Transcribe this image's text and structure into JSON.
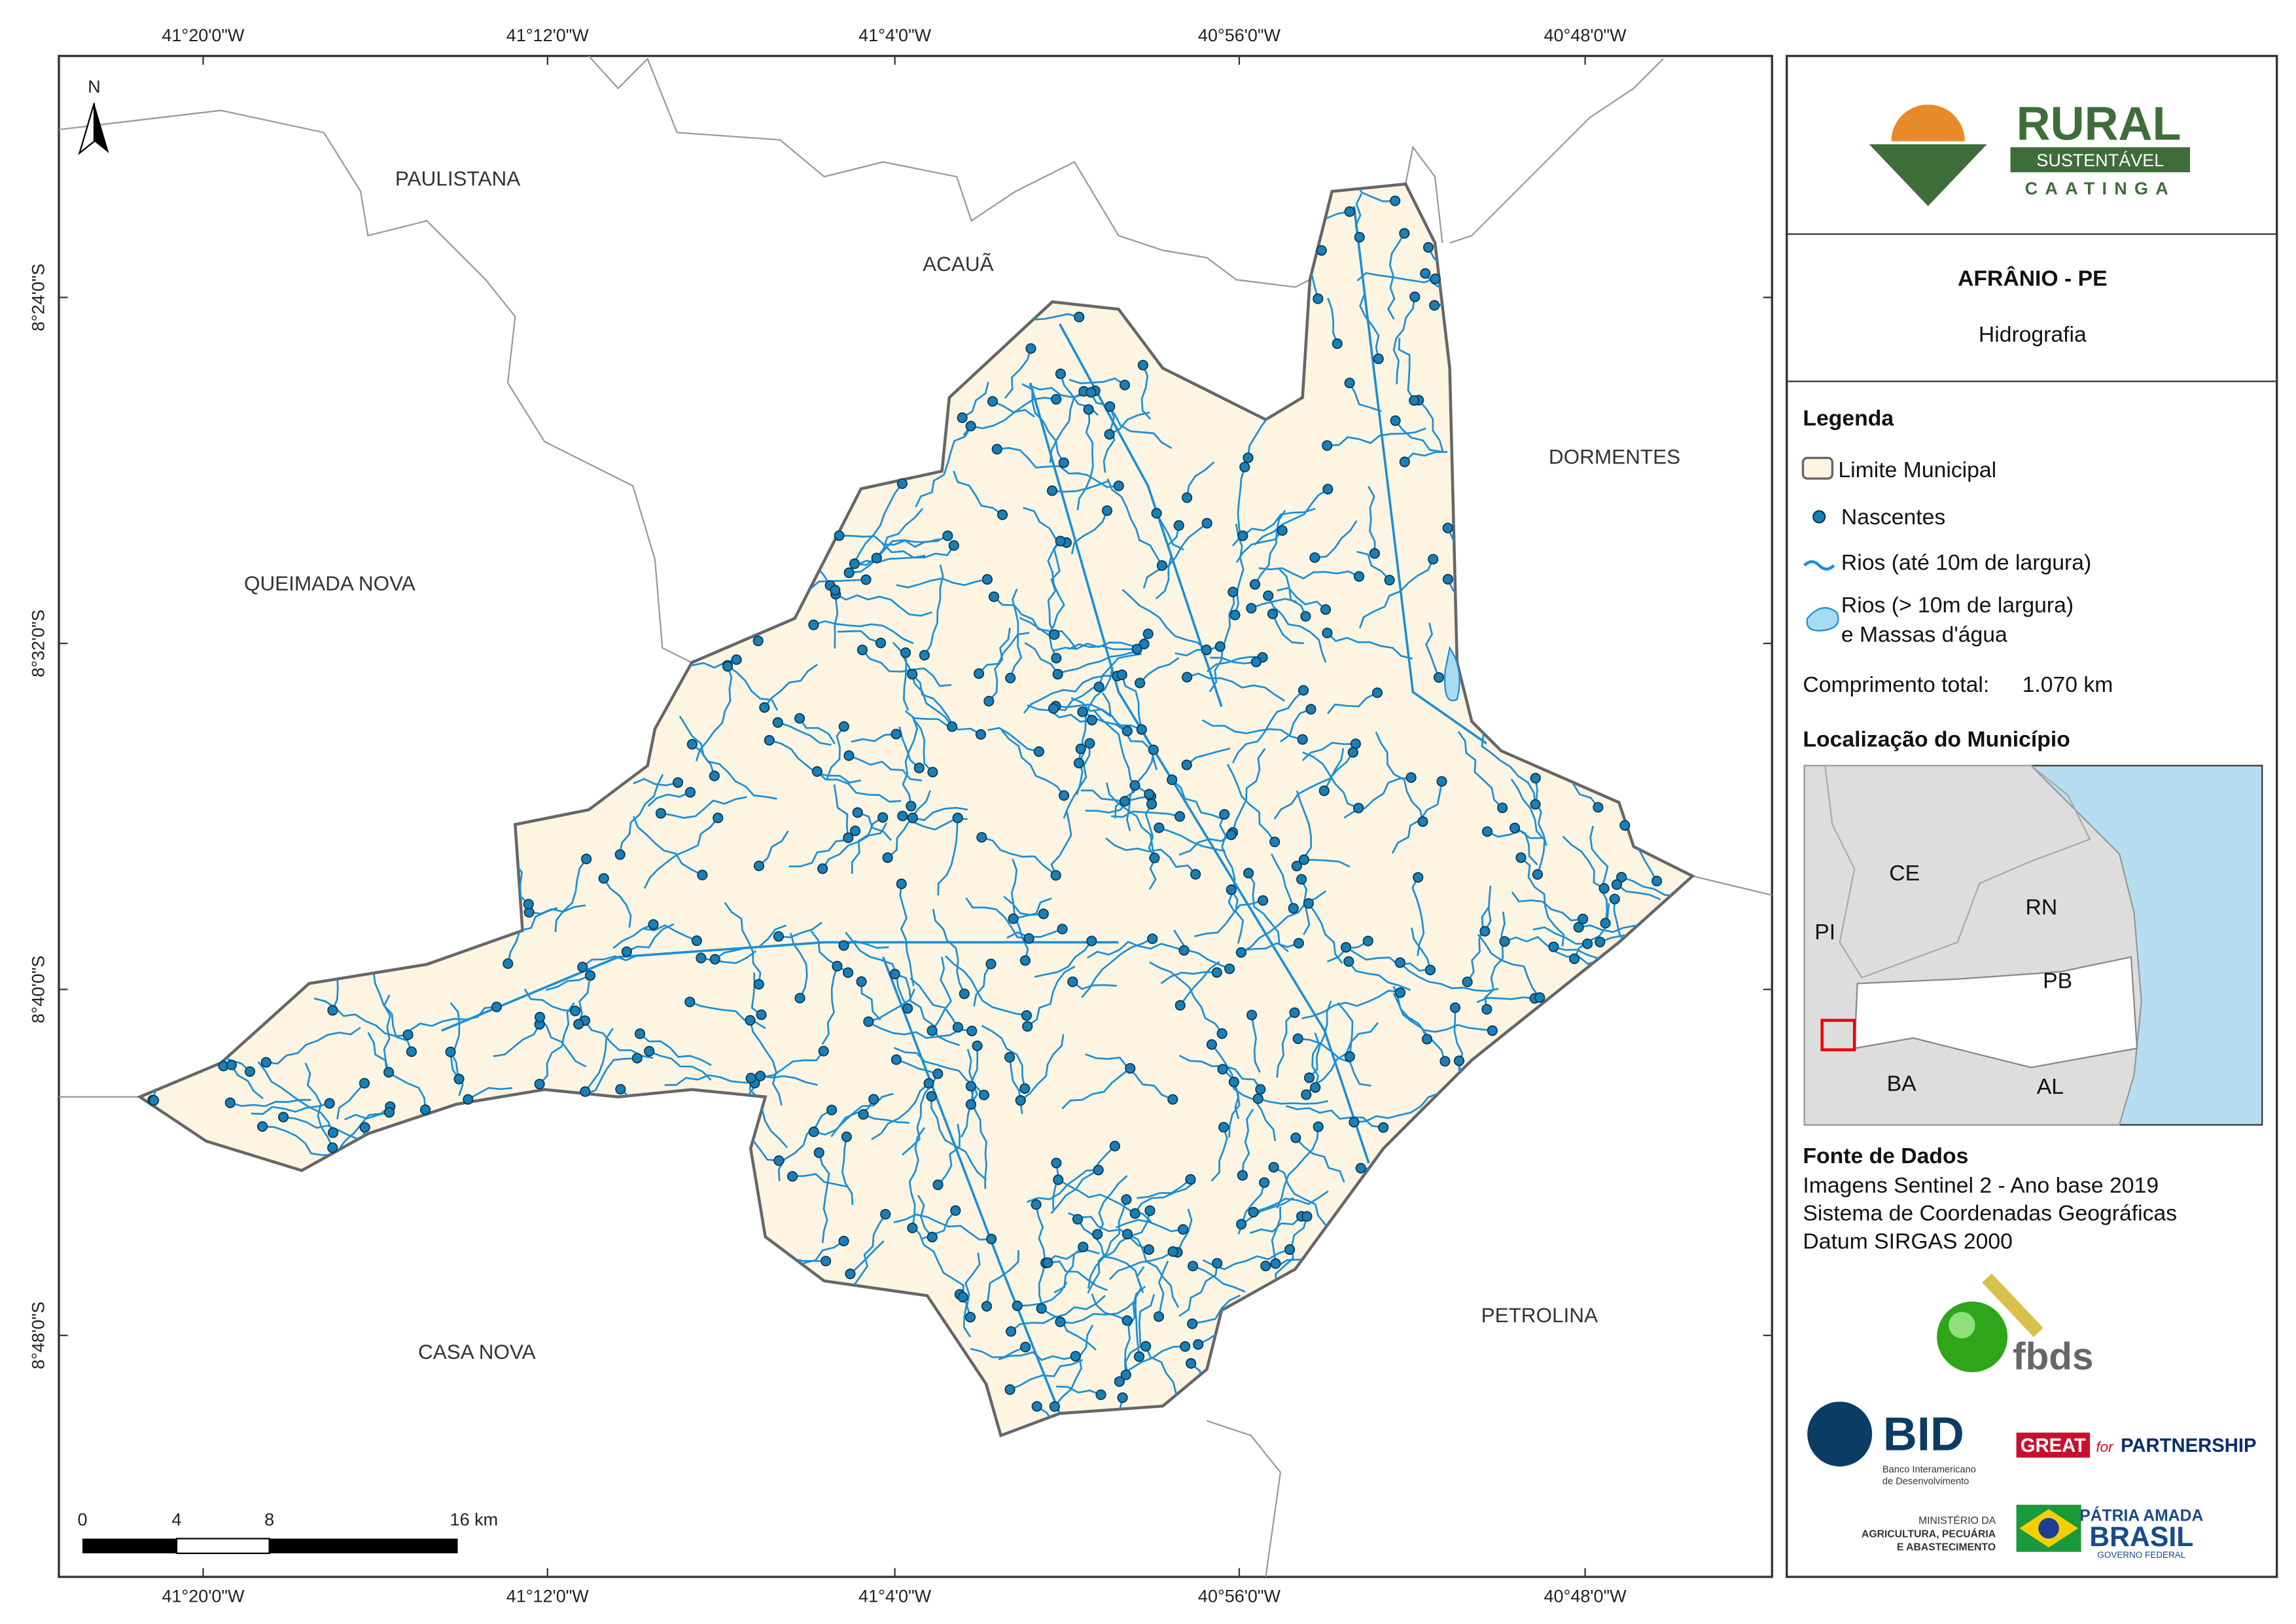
{
  "map": {
    "x_ticks": [
      "41°20'0\"W",
      "41°12'0\"W",
      "41°4'0\"W",
      "40°56'0\"W",
      "40°48'0\"W"
    ],
    "y_ticks": [
      "8°24'0\"S",
      "8°32'0\"S",
      "8°40'0\"S",
      "8°48'0\"S"
    ],
    "places": [
      "PAULISTANA",
      "ACAUÃ",
      "DORMENTES",
      "QUEIMADA NOVA",
      "CASA NOVA",
      "PETROLINA"
    ],
    "north": "N",
    "scale_bar": [
      "0",
      "4",
      "8",
      "16 km"
    ]
  },
  "panel": {
    "logo": {
      "name": "RURAL",
      "sub": "SUSTENTÁVEL",
      "region": "CAATINGA"
    },
    "title": "AFRÂNIO - PE",
    "subtitle": "Hidrografia",
    "legend_title": "Legenda",
    "legend": [
      "Limite Municipal",
      "Nascentes",
      "Rios (até 10m de largura)",
      "Rios (> 10m de largura)",
      "e Massas d'água"
    ],
    "total_label": "Comprimento total:",
    "total": "1.070 km",
    "location_title": "Localização do Município",
    "states": [
      "CE",
      "RN",
      "PI",
      "PB",
      "BA",
      "AL"
    ],
    "source_title": "Fonte de Dados",
    "source": [
      "Imagens Sentinel 2 - Ano base 2019",
      "Sistema de Coordenadas Geográficas",
      "Datum SIRGAS 2000"
    ],
    "logos": {
      "fbds": "fbds",
      "bid": "BID",
      "bid_name": [
        "Banco Interamericano",
        "de Desenvolvimento"
      ],
      "great": "GREAT",
      "great_for": "for",
      "partnership": "PARTNERSHIP",
      "ministry": [
        "MINISTÉRIO DA",
        "AGRICULTURA, PECUÁRIA",
        "E ABASTECIMENTO"
      ],
      "patria": "PÁTRIA AMADA",
      "brasil": "BRASIL",
      "governo": "GOVERNO FEDERAL"
    }
  }
}
